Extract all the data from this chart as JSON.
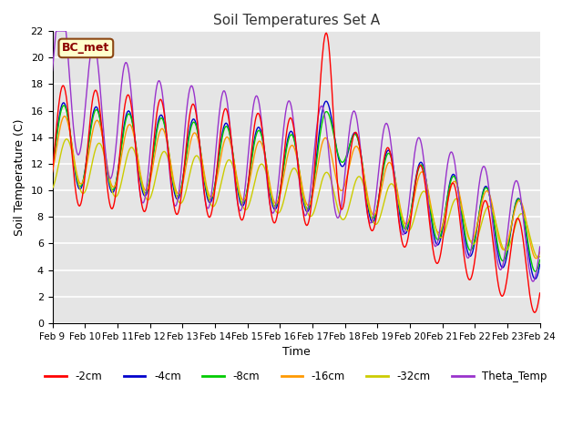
{
  "title": "Soil Temperatures Set A",
  "xlabel": "Time",
  "ylabel": "Soil Temperature (C)",
  "annotation": "BC_met",
  "ylim": [
    0,
    22
  ],
  "x_tick_labels": [
    "Feb 9",
    "Feb 10",
    "Feb 11",
    "Feb 12",
    "Feb 13",
    "Feb 14",
    "Feb 15",
    "Feb 16",
    "Feb 17",
    "Feb 18",
    "Feb 19",
    "Feb 20",
    "Feb 21",
    "Feb 22",
    "Feb 23",
    "Feb 24"
  ],
  "series_labels": [
    "-2cm",
    "-4cm",
    "-8cm",
    "-16cm",
    "-32cm",
    "Theta_Temp"
  ],
  "series_colors": [
    "#ff0000",
    "#0000cc",
    "#00cc00",
    "#ff9900",
    "#cccc00",
    "#9933cc"
  ],
  "plot_bg_color": "#e5e5e5",
  "grid_color": "#ffffff",
  "n_days": 15,
  "pts_per_day": 48
}
